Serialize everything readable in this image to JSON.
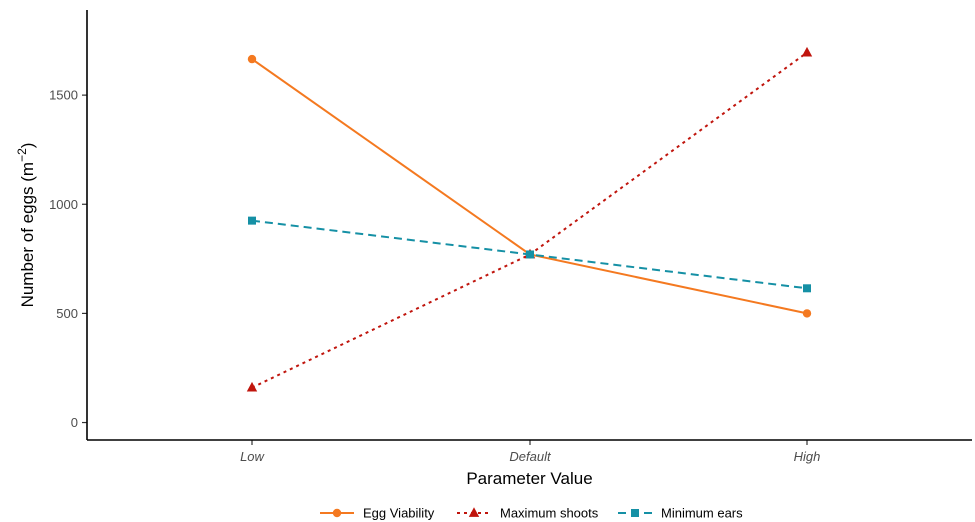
{
  "chart_data": {
    "type": "line",
    "title": "",
    "xlabel": "Parameter Value",
    "ylabel": "Number of eggs (m",
    "ylabel_sup": "−2",
    "ylabel_close": ")",
    "categories": [
      "Low",
      "Default",
      "High"
    ],
    "ylim": [
      -80,
      1890
    ],
    "yticks": [
      0,
      500,
      1000,
      1500
    ],
    "grid": false,
    "legend_position": "bottom",
    "series": [
      {
        "name": "Egg Viability",
        "values": [
          1665,
          770,
          500
        ],
        "color": "#F47920",
        "dash": "solid",
        "marker": "circle"
      },
      {
        "name": "Maximum shoots",
        "values": [
          160,
          770,
          1695
        ],
        "color": "#C0150D",
        "dash": "dotted",
        "marker": "triangle"
      },
      {
        "name": "Minimum ears",
        "values": [
          925,
          770,
          615
        ],
        "color": "#1590A5",
        "dash": "dashed",
        "marker": "square"
      }
    ]
  }
}
